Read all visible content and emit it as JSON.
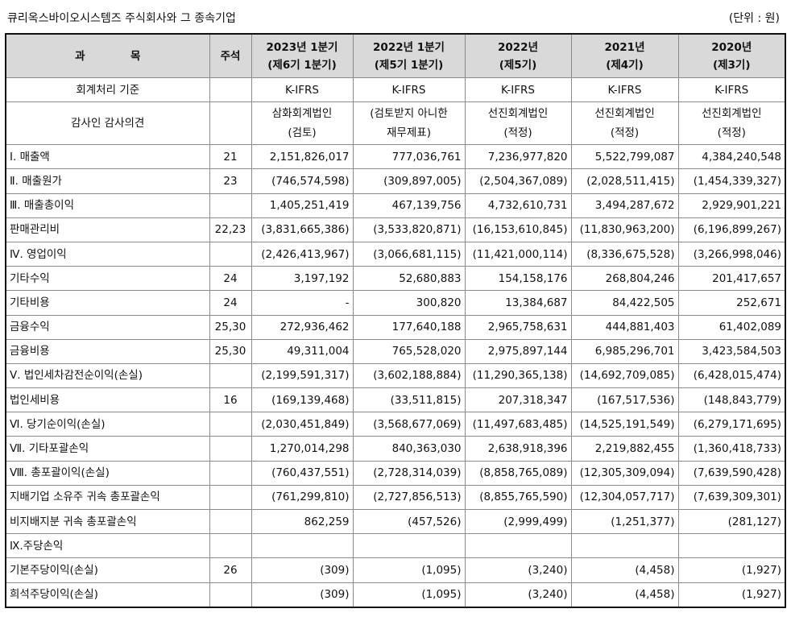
{
  "document": {
    "title": "큐리옥스바이오시스템즈 주식회사와 그 종속기업",
    "unit": "(단위 : 원)"
  },
  "table": {
    "headers": {
      "account": "과            목",
      "note": "주석",
      "periods": [
        {
          "line1": "2023년 1분기",
          "line2": "(제6기 1분기)"
        },
        {
          "line1": "2022년 1분기",
          "line2": "(제5기 1분기)"
        },
        {
          "line1": "2022년",
          "line2": "(제5기)"
        },
        {
          "line1": "2021년",
          "line2": "(제4기)"
        },
        {
          "line1": "2020년",
          "line2": "(제3기)"
        }
      ]
    },
    "accounting_standard": {
      "label": "회계처리 기준",
      "values": [
        "K-IFRS",
        "K-IFRS",
        "K-IFRS",
        "K-IFRS",
        "K-IFRS"
      ]
    },
    "audit_opinion": {
      "label": "감사인 감사의견",
      "values": [
        {
          "line1": "삼화회계법인",
          "line2": "(검토)"
        },
        {
          "line1": "(검토받지 아니한",
          "line2": "재무제표)"
        },
        {
          "line1": "선진회계법인",
          "line2": "(적정)"
        },
        {
          "line1": "선진회계법인",
          "line2": "(적정)"
        },
        {
          "line1": "선진회계법인",
          "line2": "(적정)"
        }
      ]
    },
    "rows": [
      {
        "label": "Ⅰ. 매출액",
        "note": "21",
        "values": [
          "2,151,826,017",
          "777,036,761",
          "7,236,977,820",
          "5,522,799,087",
          "4,384,240,548"
        ]
      },
      {
        "label": "Ⅱ. 매출원가",
        "note": "23",
        "values": [
          "(746,574,598)",
          "(309,897,005)",
          "(2,504,367,089)",
          "(2,028,511,415)",
          "(1,454,339,327)"
        ]
      },
      {
        "label": "Ⅲ. 매출총이익",
        "note": "",
        "values": [
          "1,405,251,419",
          "467,139,756",
          "4,732,610,731",
          "3,494,287,672",
          "2,929,901,221"
        ]
      },
      {
        "label": "판매관리비",
        "note": "22,23",
        "values": [
          "(3,831,665,386)",
          "(3,533,820,871)",
          "(16,153,610,845)",
          "(11,830,963,200)",
          "(6,196,899,267)"
        ]
      },
      {
        "label": "Ⅳ. 영업이익",
        "note": "",
        "values": [
          "(2,426,413,967)",
          "(3,066,681,115)",
          "(11,421,000,114)",
          "(8,336,675,528)",
          "(3,266,998,046)"
        ]
      },
      {
        "label": "기타수익",
        "note": "24",
        "values": [
          "3,197,192",
          "52,680,883",
          "154,158,176",
          "268,804,246",
          "201,417,657"
        ]
      },
      {
        "label": "기타비용",
        "note": "24",
        "values": [
          "-",
          "300,820",
          "13,384,687",
          "84,422,505",
          "252,671"
        ]
      },
      {
        "label": "금융수익",
        "note": "25,30",
        "values": [
          "272,936,462",
          "177,640,188",
          "2,965,758,631",
          "444,881,403",
          "61,402,089"
        ]
      },
      {
        "label": "금융비용",
        "note": "25,30",
        "values": [
          "49,311,004",
          "765,528,020",
          "2,975,897,144",
          "6,985,296,701",
          "3,423,584,503"
        ]
      },
      {
        "label": "Ⅴ. 법인세차감전순이익(손실)",
        "note": "",
        "values": [
          "(2,199,591,317)",
          "(3,602,188,884)",
          "(11,290,365,138)",
          "(14,692,709,085)",
          "(6,428,015,474)"
        ]
      },
      {
        "label": "법인세비용",
        "note": "16",
        "values": [
          "(169,139,468)",
          "(33,511,815)",
          "207,318,347",
          "(167,517,536)",
          "(148,843,779)"
        ]
      },
      {
        "label": "Ⅵ. 당기순이익(손실)",
        "note": "",
        "values": [
          "(2,030,451,849)",
          "(3,568,677,069)",
          "(11,497,683,485)",
          "(14,525,191,549)",
          "(6,279,171,695)"
        ]
      },
      {
        "label": "Ⅶ. 기타포괄손익",
        "note": "",
        "values": [
          "1,270,014,298",
          "840,363,030",
          "2,638,918,396",
          "2,219,882,455",
          "(1,360,418,733)"
        ]
      },
      {
        "label": "Ⅷ. 총포괄이익(손실)",
        "note": "",
        "values": [
          "(760,437,551)",
          "(2,728,314,039)",
          "(8,858,765,089)",
          "(12,305,309,094)",
          "(7,639,590,428)"
        ]
      },
      {
        "label": "지배기업 소유주 귀속 총포괄손익",
        "note": "",
        "values": [
          "(761,299,810)",
          "(2,727,856,513)",
          "(8,855,765,590)",
          "(12,304,057,717)",
          "(7,639,309,301)"
        ]
      },
      {
        "label": "비지배지분 귀속 총포괄손익",
        "note": "",
        "values": [
          "862,259",
          "(457,526)",
          "(2,999,499)",
          "(1,251,377)",
          "(281,127)"
        ]
      },
      {
        "label": "Ⅸ.주당손익",
        "note": "",
        "values": [
          "",
          "",
          "",
          "",
          ""
        ]
      },
      {
        "label": "기본주당이익(손실)",
        "note": "26",
        "values": [
          "(309)",
          "(1,095)",
          "(3,240)",
          "(4,458)",
          "(1,927)"
        ]
      },
      {
        "label": "희석주당이익(손실)",
        "note": "",
        "values": [
          "(309)",
          "(1,095)",
          "(3,240)",
          "(4,458)",
          "(1,927)"
        ]
      }
    ]
  },
  "colors": {
    "header_bg": "#d9d9d9",
    "grid": "#8a8a8a",
    "outer_border": "#111111"
  }
}
